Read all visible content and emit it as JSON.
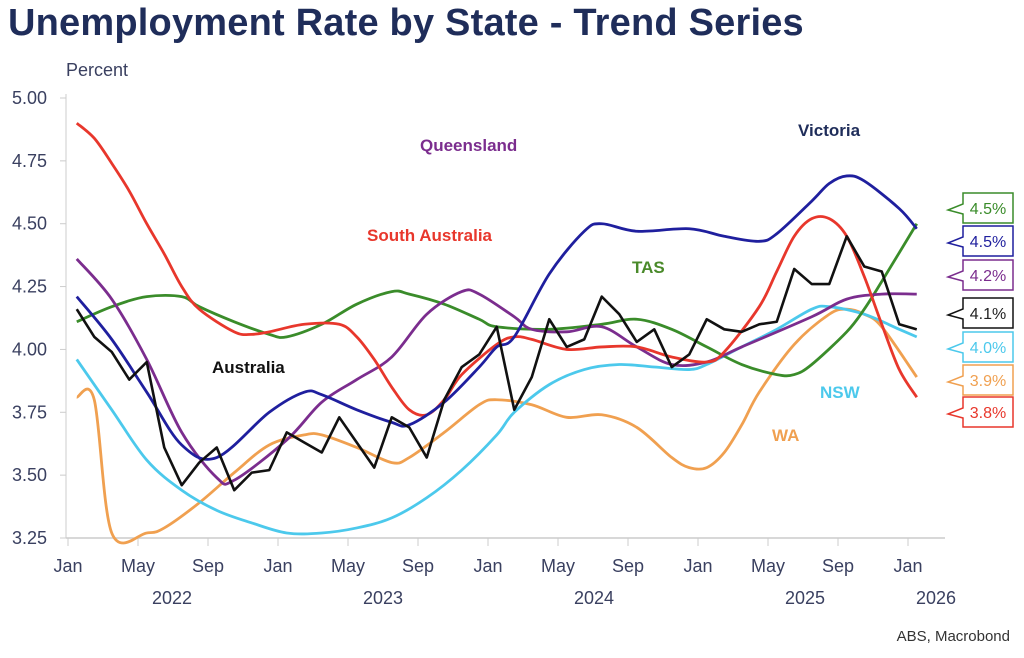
{
  "chart_data": {
    "type": "line",
    "title": "Unemployment Rate by State - Trend Series",
    "ylabel": "Percent",
    "xlabel": "",
    "x_units": "months since Jan 2022",
    "ylim": [
      3.25,
      5.0
    ],
    "xlim": [
      "2022-01",
      "2026-01"
    ],
    "y_ticks": [
      "5.00",
      "4.75",
      "4.50",
      "4.25",
      "4.00",
      "3.75",
      "3.50",
      "3.25"
    ],
    "x_ticks": [
      "Jan",
      "May",
      "Sep",
      "Jan",
      "May",
      "Sep",
      "Jan",
      "May",
      "Sep",
      "Jan",
      "May",
      "Sep",
      "Jan"
    ],
    "year_labels": [
      "2022",
      "2023",
      "2024",
      "2025",
      "2026"
    ],
    "grid": false,
    "source": "ABS, Macrobond",
    "series": [
      {
        "name": "Victoria",
        "color": "#1f1f9e",
        "last_label": "4.5%",
        "points": [
          [
            0,
            4.21
          ],
          [
            2,
            4.04
          ],
          [
            4,
            3.83
          ],
          [
            6,
            3.62
          ],
          [
            8,
            3.57
          ],
          [
            11,
            3.75
          ],
          [
            13,
            3.83
          ],
          [
            14,
            3.82
          ],
          [
            16,
            3.76
          ],
          [
            18,
            3.71
          ],
          [
            19,
            3.7
          ],
          [
            21,
            3.79
          ],
          [
            23,
            3.93
          ],
          [
            24,
            4.01
          ],
          [
            25,
            4.05
          ],
          [
            27,
            4.3
          ],
          [
            29,
            4.47
          ],
          [
            30,
            4.5
          ],
          [
            32,
            4.47
          ],
          [
            35,
            4.48
          ],
          [
            37,
            4.45
          ],
          [
            39,
            4.43
          ],
          [
            40,
            4.46
          ],
          [
            42,
            4.59
          ],
          [
            43,
            4.66
          ],
          [
            44,
            4.69
          ],
          [
            45,
            4.67
          ],
          [
            47,
            4.56
          ],
          [
            48,
            4.48
          ]
        ]
      },
      {
        "name": "Queensland",
        "color": "#7b2d8e",
        "last_label": "4.2%",
        "points": [
          [
            0,
            4.36
          ],
          [
            2,
            4.2
          ],
          [
            4,
            3.96
          ],
          [
            6,
            3.67
          ],
          [
            8,
            3.49
          ],
          [
            9,
            3.48
          ],
          [
            12,
            3.64
          ],
          [
            14,
            3.79
          ],
          [
            16,
            3.88
          ],
          [
            18,
            3.97
          ],
          [
            20,
            4.14
          ],
          [
            22,
            4.23
          ],
          [
            23,
            4.22
          ],
          [
            25,
            4.13
          ],
          [
            26,
            4.08
          ],
          [
            28,
            4.07
          ],
          [
            30,
            4.09
          ],
          [
            32,
            4.01
          ],
          [
            34,
            3.94
          ],
          [
            36,
            3.95
          ],
          [
            38,
            4.01
          ],
          [
            42,
            4.13
          ],
          [
            44,
            4.2
          ],
          [
            46,
            4.22
          ],
          [
            48,
            4.22
          ]
        ]
      },
      {
        "name": "South Australia",
        "color": "#e8372c",
        "last_label": "3.8%",
        "points": [
          [
            0,
            4.9
          ],
          [
            1,
            4.84
          ],
          [
            2,
            4.74
          ],
          [
            3,
            4.63
          ],
          [
            4,
            4.5
          ],
          [
            5,
            4.38
          ],
          [
            6,
            4.25
          ],
          [
            7,
            4.16
          ],
          [
            9,
            4.07
          ],
          [
            10,
            4.06
          ],
          [
            11,
            4.07
          ],
          [
            13,
            4.1
          ],
          [
            15,
            4.1
          ],
          [
            16,
            4.05
          ],
          [
            17,
            3.96
          ],
          [
            18,
            3.85
          ],
          [
            19,
            3.76
          ],
          [
            20,
            3.74
          ],
          [
            21,
            3.8
          ],
          [
            22,
            3.9
          ],
          [
            24,
            4.02
          ],
          [
            25,
            4.05
          ],
          [
            26,
            4.04
          ],
          [
            28,
            4.0
          ],
          [
            30,
            4.01
          ],
          [
            32,
            4.01
          ],
          [
            34,
            3.97
          ],
          [
            36,
            3.95
          ],
          [
            37,
            3.99
          ],
          [
            39,
            4.17
          ],
          [
            40,
            4.31
          ],
          [
            41,
            4.45
          ],
          [
            42,
            4.52
          ],
          [
            43,
            4.52
          ],
          [
            44,
            4.45
          ],
          [
            45,
            4.29
          ],
          [
            46,
            4.1
          ],
          [
            47,
            3.92
          ],
          [
            48,
            3.81
          ]
        ]
      },
      {
        "name": "TAS",
        "color": "#3a8c2a",
        "last_label": "4.5%",
        "points": [
          [
            0,
            4.11
          ],
          [
            2,
            4.17
          ],
          [
            4,
            4.21
          ],
          [
            6,
            4.21
          ],
          [
            7,
            4.17
          ],
          [
            9,
            4.11
          ],
          [
            11,
            4.06
          ],
          [
            12,
            4.05
          ],
          [
            14,
            4.1
          ],
          [
            16,
            4.18
          ],
          [
            18,
            4.23
          ],
          [
            19,
            4.22
          ],
          [
            21,
            4.18
          ],
          [
            23,
            4.12
          ],
          [
            24,
            4.09
          ],
          [
            27,
            4.08
          ],
          [
            30,
            4.1
          ],
          [
            32,
            4.12
          ],
          [
            34,
            4.08
          ],
          [
            36,
            4.01
          ],
          [
            38,
            3.94
          ],
          [
            40,
            3.9
          ],
          [
            41,
            3.9
          ],
          [
            42,
            3.94
          ],
          [
            44,
            4.07
          ],
          [
            45,
            4.16
          ],
          [
            46,
            4.27
          ],
          [
            48,
            4.5
          ]
        ]
      },
      {
        "name": "NSW",
        "color": "#4cc9ec",
        "last_label": "4.0%",
        "points": [
          [
            0,
            3.96
          ],
          [
            2,
            3.76
          ],
          [
            4,
            3.56
          ],
          [
            6,
            3.44
          ],
          [
            8,
            3.36
          ],
          [
            10,
            3.31
          ],
          [
            12,
            3.27
          ],
          [
            14,
            3.27
          ],
          [
            16,
            3.29
          ],
          [
            18,
            3.33
          ],
          [
            20,
            3.41
          ],
          [
            22,
            3.52
          ],
          [
            24,
            3.66
          ],
          [
            25,
            3.75
          ],
          [
            27,
            3.86
          ],
          [
            29,
            3.92
          ],
          [
            31,
            3.94
          ],
          [
            33,
            3.93
          ],
          [
            35,
            3.92
          ],
          [
            36,
            3.94
          ],
          [
            38,
            4.01
          ],
          [
            40,
            4.08
          ],
          [
            42,
            4.16
          ],
          [
            43,
            4.17
          ],
          [
            45,
            4.14
          ],
          [
            47,
            4.08
          ],
          [
            48,
            4.05
          ]
        ]
      },
      {
        "name": "WA",
        "color": "#f0a050",
        "last_label": "3.9%",
        "points": [
          [
            0,
            3.81
          ],
          [
            1,
            3.8
          ],
          [
            2,
            3.27
          ],
          [
            4,
            3.27
          ],
          [
            5,
            3.29
          ],
          [
            7,
            3.39
          ],
          [
            9,
            3.51
          ],
          [
            11,
            3.62
          ],
          [
            13,
            3.66
          ],
          [
            14,
            3.66
          ],
          [
            16,
            3.61
          ],
          [
            18,
            3.55
          ],
          [
            19,
            3.57
          ],
          [
            21,
            3.67
          ],
          [
            23,
            3.78
          ],
          [
            24,
            3.8
          ],
          [
            26,
            3.78
          ],
          [
            28,
            3.73
          ],
          [
            30,
            3.74
          ],
          [
            32,
            3.69
          ],
          [
            34,
            3.57
          ],
          [
            35,
            3.53
          ],
          [
            36,
            3.53
          ],
          [
            37,
            3.59
          ],
          [
            38,
            3.7
          ],
          [
            39,
            3.83
          ],
          [
            41,
            4.02
          ],
          [
            43,
            4.14
          ],
          [
            44,
            4.16
          ],
          [
            45,
            4.14
          ],
          [
            46,
            4.09
          ],
          [
            48,
            3.89
          ]
        ]
      },
      {
        "name": "Australia",
        "color": "#111111",
        "last_label": "4.1%",
        "jagged": true,
        "points": [
          [
            0,
            4.16
          ],
          [
            1,
            4.05
          ],
          [
            2,
            3.99
          ],
          [
            3,
            3.88
          ],
          [
            4,
            3.95
          ],
          [
            5,
            3.61
          ],
          [
            6,
            3.46
          ],
          [
            7,
            3.55
          ],
          [
            8,
            3.61
          ],
          [
            9,
            3.44
          ],
          [
            10,
            3.51
          ],
          [
            11,
            3.52
          ],
          [
            12,
            3.67
          ],
          [
            13,
            3.63
          ],
          [
            14,
            3.59
          ],
          [
            15,
            3.73
          ],
          [
            16,
            3.63
          ],
          [
            17,
            3.53
          ],
          [
            18,
            3.73
          ],
          [
            19,
            3.69
          ],
          [
            20,
            3.57
          ],
          [
            21,
            3.8
          ],
          [
            22,
            3.93
          ],
          [
            23,
            3.98
          ],
          [
            24,
            4.09
          ],
          [
            25,
            3.76
          ],
          [
            26,
            3.89
          ],
          [
            27,
            4.12
          ],
          [
            28,
            4.01
          ],
          [
            29,
            4.04
          ],
          [
            30,
            4.21
          ],
          [
            31,
            4.14
          ],
          [
            32,
            4.03
          ],
          [
            33,
            4.08
          ],
          [
            34,
            3.93
          ],
          [
            35,
            3.98
          ],
          [
            36,
            4.12
          ],
          [
            37,
            4.08
          ],
          [
            38,
            4.07
          ],
          [
            39,
            4.1
          ],
          [
            40,
            4.11
          ],
          [
            41,
            4.32
          ],
          [
            42,
            4.26
          ],
          [
            43,
            4.26
          ],
          [
            44,
            4.45
          ],
          [
            45,
            4.33
          ],
          [
            46,
            4.31
          ],
          [
            47,
            4.1
          ],
          [
            48,
            4.08
          ]
        ]
      }
    ]
  }
}
